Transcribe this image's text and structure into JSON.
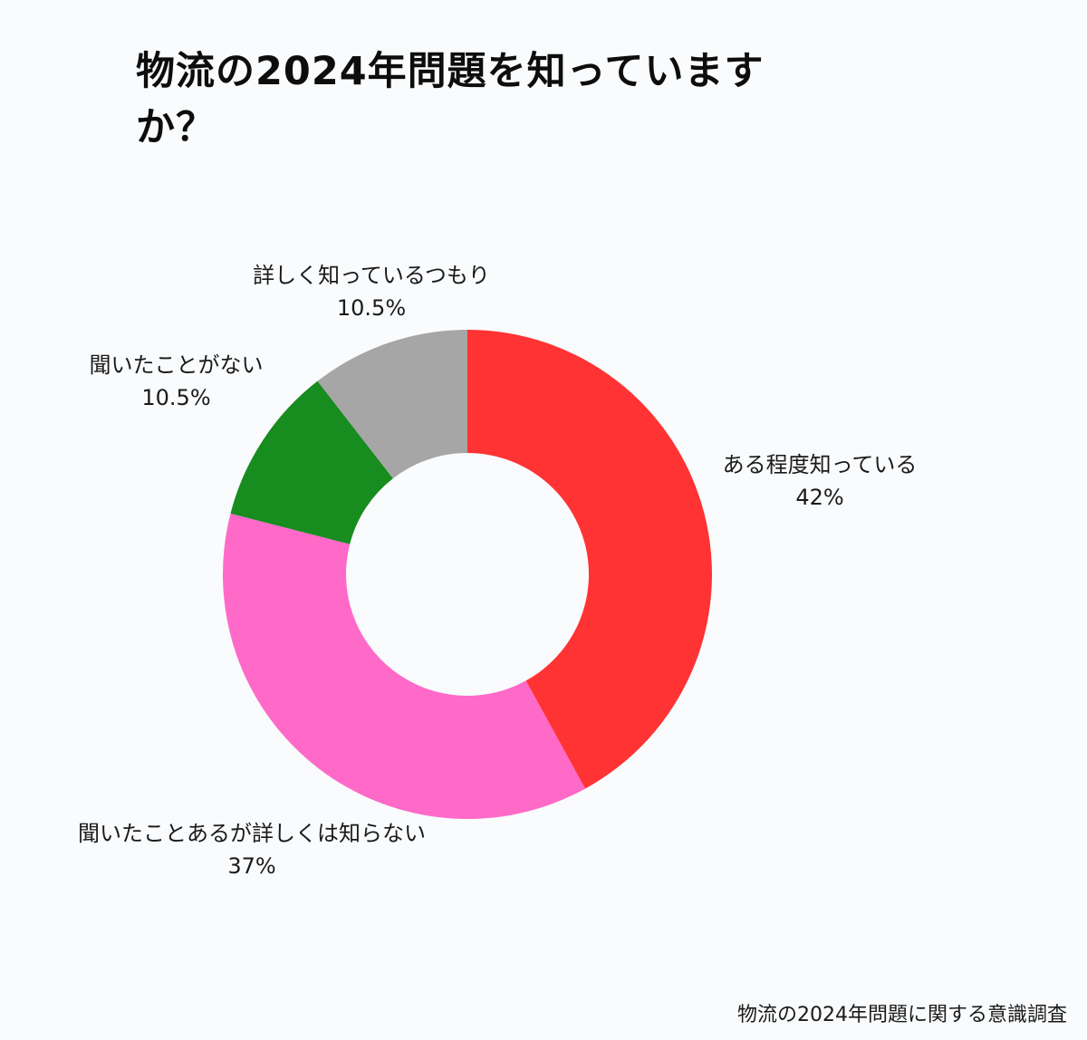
{
  "chart_data": {
    "type": "pie",
    "donut": true,
    "title": "物流の2024年問題を知っていますか？",
    "source": "物流の2024年問題に関する意識調査",
    "slices": [
      {
        "label": "ある程度知っている",
        "value": 42,
        "value_label": "42%",
        "color": "#ff3334"
      },
      {
        "label": "聞いたことあるが詳しくは知らない",
        "value": 37,
        "value_label": "37%",
        "color": "#ff69c8"
      },
      {
        "label": "聞いたことがない",
        "value": 10.5,
        "value_label": "10.5%",
        "color": "#178c1f"
      },
      {
        "label": "詳しく知っているつもり",
        "value": 10.5,
        "value_label": "10.5%",
        "color": "#a6a6a6"
      }
    ]
  }
}
